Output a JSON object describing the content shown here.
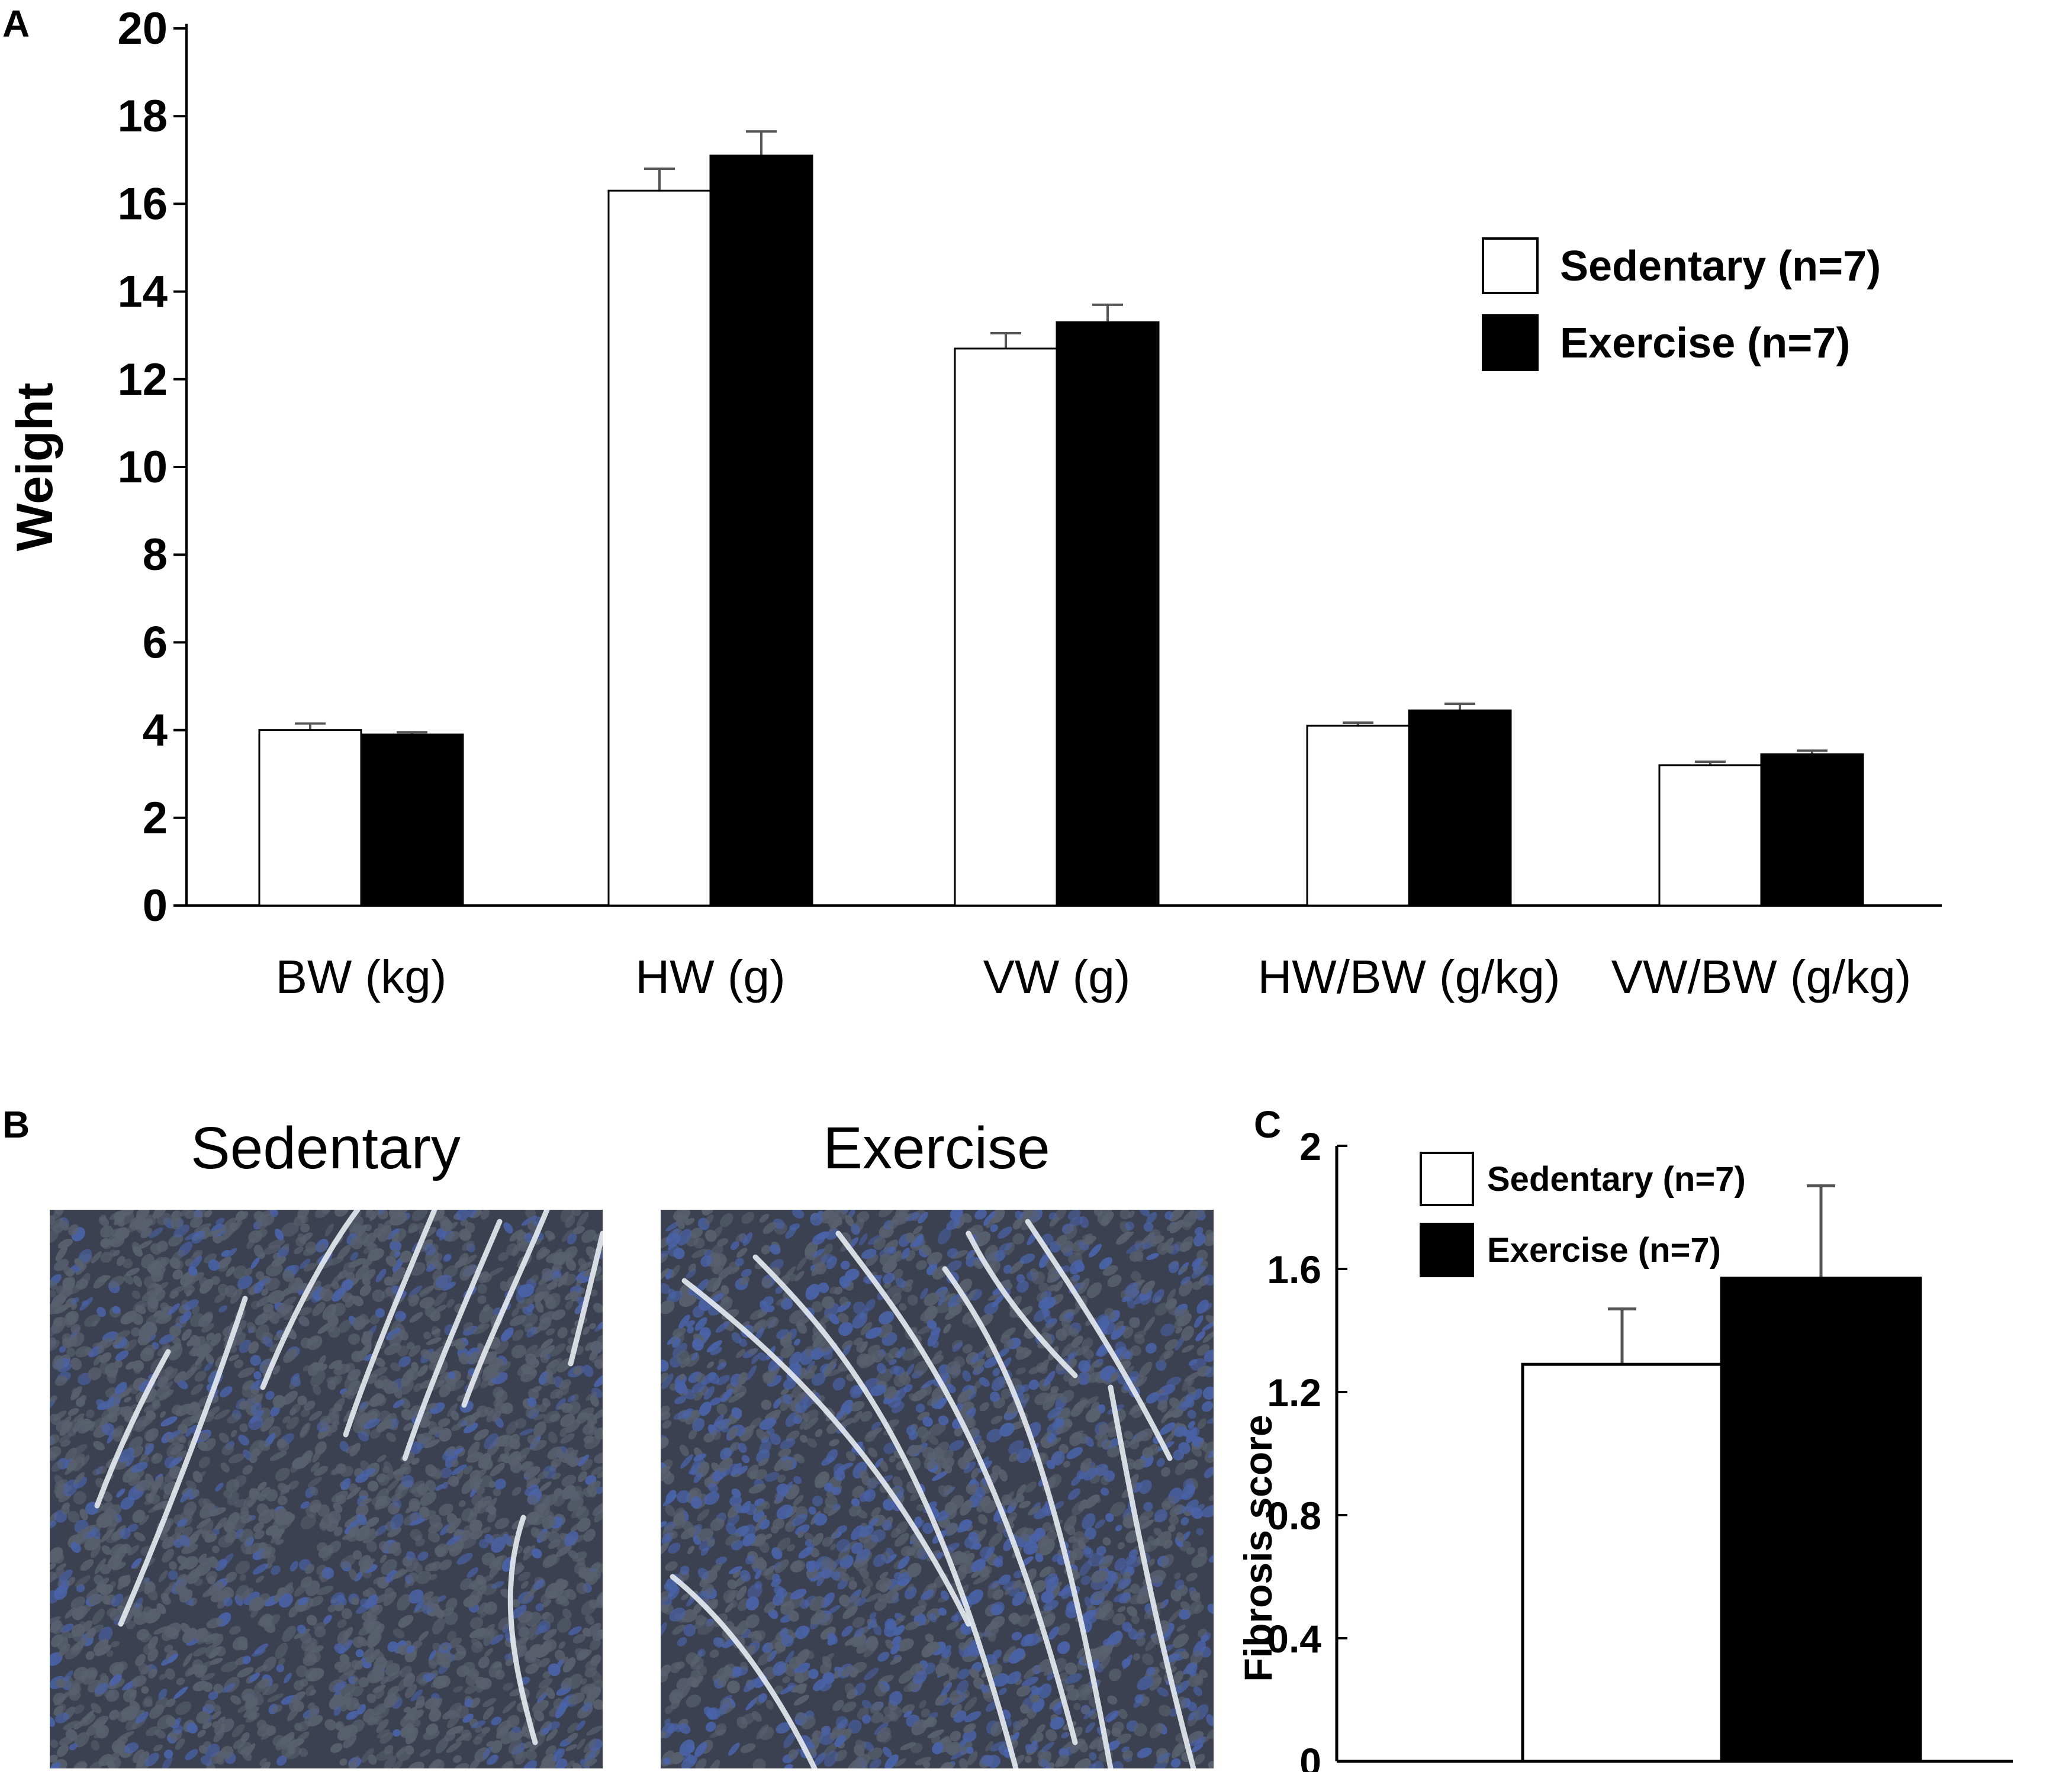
{
  "colors": {
    "sedentary_fill": "#ffffff",
    "exercise_fill": "#000000",
    "error_bar": "#555555",
    "tissue_dark": "#3b4150",
    "tissue_blue": "#4a63a8",
    "tissue_light": "#e8ecf2"
  },
  "panel_letters": {
    "a": "A",
    "b": "B",
    "c": "C"
  },
  "chart_data": [
    {
      "panel": "A",
      "type": "bar",
      "title": "",
      "xlabel": "",
      "ylabel": "Weight",
      "ylim": [
        0,
        20
      ],
      "yticks": [
        "0",
        "2",
        "4",
        "6",
        "8",
        "10",
        "12",
        "14",
        "16",
        "18",
        "20"
      ],
      "categories": [
        "BW (kg)",
        "HW (g)",
        "VW (g)",
        "HW/BW (g/kg)",
        "VW/BW (g/kg)"
      ],
      "series": [
        {
          "name": "Sedentary (n=7)",
          "values": [
            4.0,
            16.3,
            12.7,
            4.1,
            3.2
          ],
          "errors": [
            0.15,
            0.5,
            0.35,
            0.07,
            0.08
          ]
        },
        {
          "name": "Exercise (n=7)",
          "values": [
            3.9,
            17.1,
            13.3,
            4.45,
            3.45
          ],
          "errors": [
            0.05,
            0.55,
            0.4,
            0.15,
            0.08
          ]
        }
      ],
      "grid": false,
      "legend": "top-right"
    },
    {
      "panel": "C",
      "type": "bar",
      "title": "",
      "xlabel": "",
      "ylabel": "Fibrosis score",
      "ylim": [
        0,
        2
      ],
      "yticks": [
        "0",
        "0.4",
        "0.8",
        "1.2",
        "1.6",
        "2"
      ],
      "categories": [
        ""
      ],
      "series": [
        {
          "name": "Sedentary (n=7)",
          "values": [
            1.29
          ],
          "errors": [
            0.18
          ]
        },
        {
          "name": "Exercise (n=7)",
          "values": [
            1.57
          ],
          "errors": [
            0.3
          ]
        }
      ],
      "grid": false,
      "legend": "top-left"
    }
  ],
  "panel_b": {
    "images": [
      {
        "title": "Sedentary"
      },
      {
        "title": "Exercise"
      }
    ]
  }
}
